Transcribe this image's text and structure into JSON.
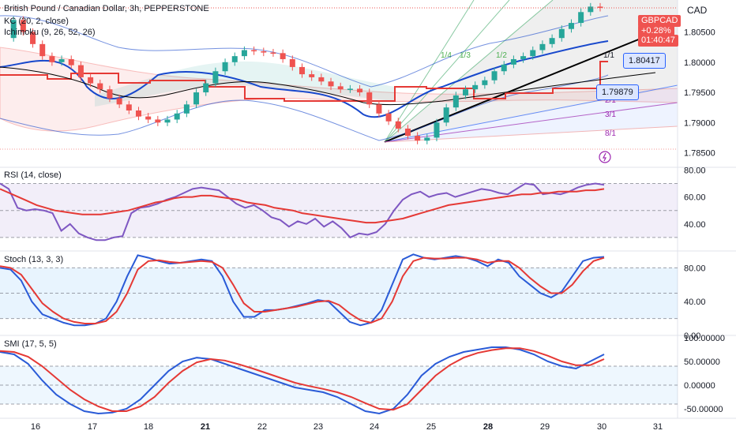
{
  "header": {
    "title": "British Pound / Canadian Dollar, 3h, PEPPERSTONE",
    "indicator_kc": "KC (20, 2, close)",
    "indicator_ichimoku": "Ichimoku (9, 26, 52, 26)",
    "currency": "CAD"
  },
  "price_tags": {
    "symbol": "GBPCAD",
    "change": "+0.28%",
    "countdown": "01:40:47",
    "level_a": "1.80417",
    "level_b": "1.79879"
  },
  "fib_fan_labels": [
    "1/4",
    "1/3",
    "1/2",
    "1/1",
    "2/1",
    "3/1",
    "8/1"
  ],
  "panes": {
    "rsi_label": "RSI (14, close)",
    "stoch_label": "Stoch (13, 3, 3)",
    "smi_label": "SMI (17, 5, 5)"
  },
  "colors": {
    "up": "#26a69a",
    "down": "#ef5350",
    "kc": "#1848cc",
    "ichimoku_base": "#e53935",
    "ichimoku_conv": "#000000",
    "rsi": "#7e57c2",
    "signal": "#e53935",
    "stoch_k": "#2a5bd7",
    "accent": "#2962ff"
  },
  "chart_data": [
    {
      "type": "candlestick",
      "title": "British Pound / Canadian Dollar, 3h, PEPPERSTONE",
      "x_ticks": [
        "16",
        "17",
        "18",
        "21",
        "22",
        "23",
        "24",
        "25",
        "28",
        "29",
        "30",
        "31"
      ],
      "y_ticks": [
        "1.80500",
        "1.80000",
        "1.79500",
        "1.79000",
        "1.78500"
      ],
      "ylim": [
        1.7835,
        1.8103
      ],
      "close_series": [
        1.804,
        1.807,
        1.805,
        1.803,
        1.801,
        1.8,
        1.8005,
        1.7995,
        1.7975,
        1.7965,
        1.7955,
        1.794,
        1.793,
        1.792,
        1.791,
        1.7905,
        1.79,
        1.7905,
        1.7915,
        1.793,
        1.795,
        1.7965,
        1.7985,
        1.8,
        1.801,
        1.802,
        1.8018,
        1.8016,
        1.8015,
        1.8005,
        1.7992,
        1.798,
        1.7975,
        1.7968,
        1.796,
        1.7955,
        1.7956,
        1.795,
        1.793,
        1.7915,
        1.7902,
        1.789,
        1.7878,
        1.787,
        1.7875,
        1.79,
        1.7925,
        1.7945,
        1.7955,
        1.7962,
        1.797,
        1.7985,
        1.7996,
        1.8005,
        1.801,
        1.802,
        1.803,
        1.804,
        1.8055,
        1.8065,
        1.8083,
        1.8092,
        1.809
      ],
      "series": [
        {
          "name": "KC (20, 2, close)",
          "values": []
        },
        {
          "name": "Ichimoku (9, 26, 52, 26)",
          "values": []
        }
      ],
      "last_price": 1.809,
      "change_pct": "+0.28%"
    },
    {
      "type": "line",
      "title": "RSI (14, close)",
      "y_ticks": [
        "80.00",
        "60.00",
        "40.00"
      ],
      "ylim": [
        20,
        82
      ],
      "bands": [
        70,
        50,
        30
      ],
      "series": [
        {
          "name": "RSI",
          "values": [
            70,
            66,
            52,
            50,
            51,
            50,
            48,
            35,
            40,
            33,
            30,
            28,
            28,
            30,
            31,
            48,
            52,
            53,
            55,
            58,
            60,
            63,
            66,
            67,
            66,
            65,
            60,
            55,
            52,
            54,
            50,
            45,
            43,
            38,
            42,
            40,
            44,
            38,
            42,
            37,
            30,
            33,
            32,
            34,
            40,
            50,
            58,
            62,
            64,
            60,
            62,
            63,
            60,
            62,
            64,
            66,
            65,
            63,
            62,
            66,
            70,
            69,
            62,
            63,
            62,
            64,
            67,
            69,
            70,
            69
          ]
        },
        {
          "name": "Signal",
          "values": [
            66,
            63,
            60,
            57,
            54,
            52,
            50,
            49,
            48,
            47,
            47,
            47,
            48,
            49,
            50,
            52,
            54,
            56,
            57,
            59,
            60,
            60,
            61,
            61,
            60,
            59,
            58,
            56,
            55,
            54,
            52,
            51,
            50,
            48,
            47,
            46,
            45,
            44,
            43,
            42,
            41,
            41,
            42,
            43,
            44,
            46,
            48,
            50,
            52,
            54,
            55,
            56,
            57,
            58,
            59,
            60,
            61,
            62,
            62,
            63,
            63,
            64,
            64,
            64,
            65,
            65,
            66
          ]
        }
      ]
    },
    {
      "type": "line",
      "title": "Stoch (13, 3, 3)",
      "y_ticks": [
        "80.00",
        "40.00",
        "0.00"
      ],
      "ylim": [
        0,
        100
      ],
      "bands": [
        80,
        50,
        20
      ],
      "series": [
        {
          "name": "%K",
          "values": [
            80,
            78,
            65,
            40,
            25,
            20,
            15,
            12,
            12,
            14,
            20,
            40,
            70,
            95,
            92,
            88,
            85,
            86,
            88,
            90,
            88,
            70,
            40,
            22,
            22,
            30,
            30,
            32,
            35,
            38,
            42,
            40,
            28,
            16,
            12,
            15,
            30,
            60,
            90,
            96,
            92,
            90,
            92,
            94,
            92,
            88,
            82,
            90,
            86,
            70,
            60,
            50,
            45,
            52,
            70,
            88,
            92,
            93
          ]
        },
        {
          "name": "%D",
          "values": [
            82,
            80,
            72,
            55,
            38,
            28,
            20,
            16,
            14,
            14,
            17,
            28,
            50,
            78,
            88,
            89,
            87,
            86,
            87,
            88,
            87,
            80,
            60,
            38,
            28,
            28,
            30,
            32,
            34,
            37,
            40,
            41,
            36,
            26,
            18,
            15,
            20,
            40,
            70,
            88,
            92,
            91,
            91,
            92,
            92,
            90,
            86,
            88,
            88,
            80,
            68,
            58,
            50,
            50,
            60,
            76,
            88,
            92
          ]
        }
      ]
    },
    {
      "type": "line",
      "title": "SMI (17, 5, 5)",
      "y_ticks": [
        "100.00000",
        "50.00000",
        "0.00000",
        "-50.00000"
      ],
      "ylim": [
        -70,
        105
      ],
      "bands": [
        40,
        0,
        -40
      ],
      "series": [
        {
          "name": "SMI",
          "values": [
            70,
            65,
            45,
            10,
            -20,
            -40,
            -55,
            -60,
            -58,
            -50,
            -30,
            0,
            30,
            50,
            58,
            55,
            45,
            35,
            25,
            15,
            5,
            -5,
            -10,
            -15,
            -25,
            -40,
            -55,
            -60,
            -50,
            -20,
            20,
            45,
            60,
            70,
            75,
            80,
            80,
            75,
            65,
            50,
            40,
            35,
            50,
            65
          ]
        },
        {
          "name": "Signal",
          "values": [
            72,
            70,
            60,
            40,
            15,
            -10,
            -30,
            -45,
            -55,
            -55,
            -45,
            -25,
            5,
            30,
            48,
            55,
            52,
            44,
            35,
            25,
            15,
            5,
            -2,
            -8,
            -15,
            -25,
            -38,
            -50,
            -52,
            -40,
            -10,
            20,
            42,
            58,
            68,
            74,
            78,
            78,
            72,
            62,
            50,
            42,
            42,
            55
          ]
        }
      ]
    }
  ],
  "x_axis": {
    "ticks": [
      "16",
      "17",
      "18",
      "21",
      "22",
      "23",
      "24",
      "25",
      "28",
      "29",
      "30",
      "31"
    ],
    "bold": [
      "21",
      "28"
    ]
  }
}
